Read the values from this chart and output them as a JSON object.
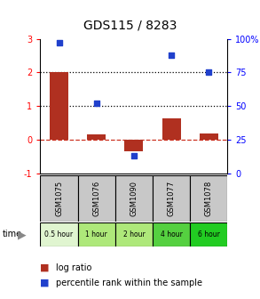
{
  "title": "GDS115 / 8283",
  "samples": [
    "GSM1075",
    "GSM1076",
    "GSM1090",
    "GSM1077",
    "GSM1078"
  ],
  "time_labels": [
    "0.5 hour",
    "1 hour",
    "2 hour",
    "4 hour",
    "6 hour"
  ],
  "time_colors": [
    "#e0f5d0",
    "#aee87a",
    "#aee87a",
    "#55d040",
    "#22cc22"
  ],
  "log_ratio": [
    2.0,
    0.15,
    -0.35,
    0.65,
    0.2
  ],
  "percentile_rank": [
    97,
    52,
    13,
    88,
    75
  ],
  "bar_color": "#b03020",
  "dot_color": "#2040cc",
  "ylim_left": [
    -1,
    3
  ],
  "ylim_right": [
    0,
    100
  ],
  "yticks_left": [
    -1,
    0,
    1,
    2,
    3
  ],
  "yticks_right": [
    0,
    25,
    50,
    75,
    100
  ],
  "ytick_labels_left": [
    "-1",
    "0",
    "1",
    "2",
    "3"
  ],
  "ytick_labels_right": [
    "0",
    "25",
    "50",
    "75",
    "100%"
  ],
  "hline_y": [
    1,
    2
  ],
  "zero_line_color": "#cc3322",
  "legend_log": "log ratio",
  "legend_pct": "percentile rank within the sample",
  "time_row_label": "time"
}
